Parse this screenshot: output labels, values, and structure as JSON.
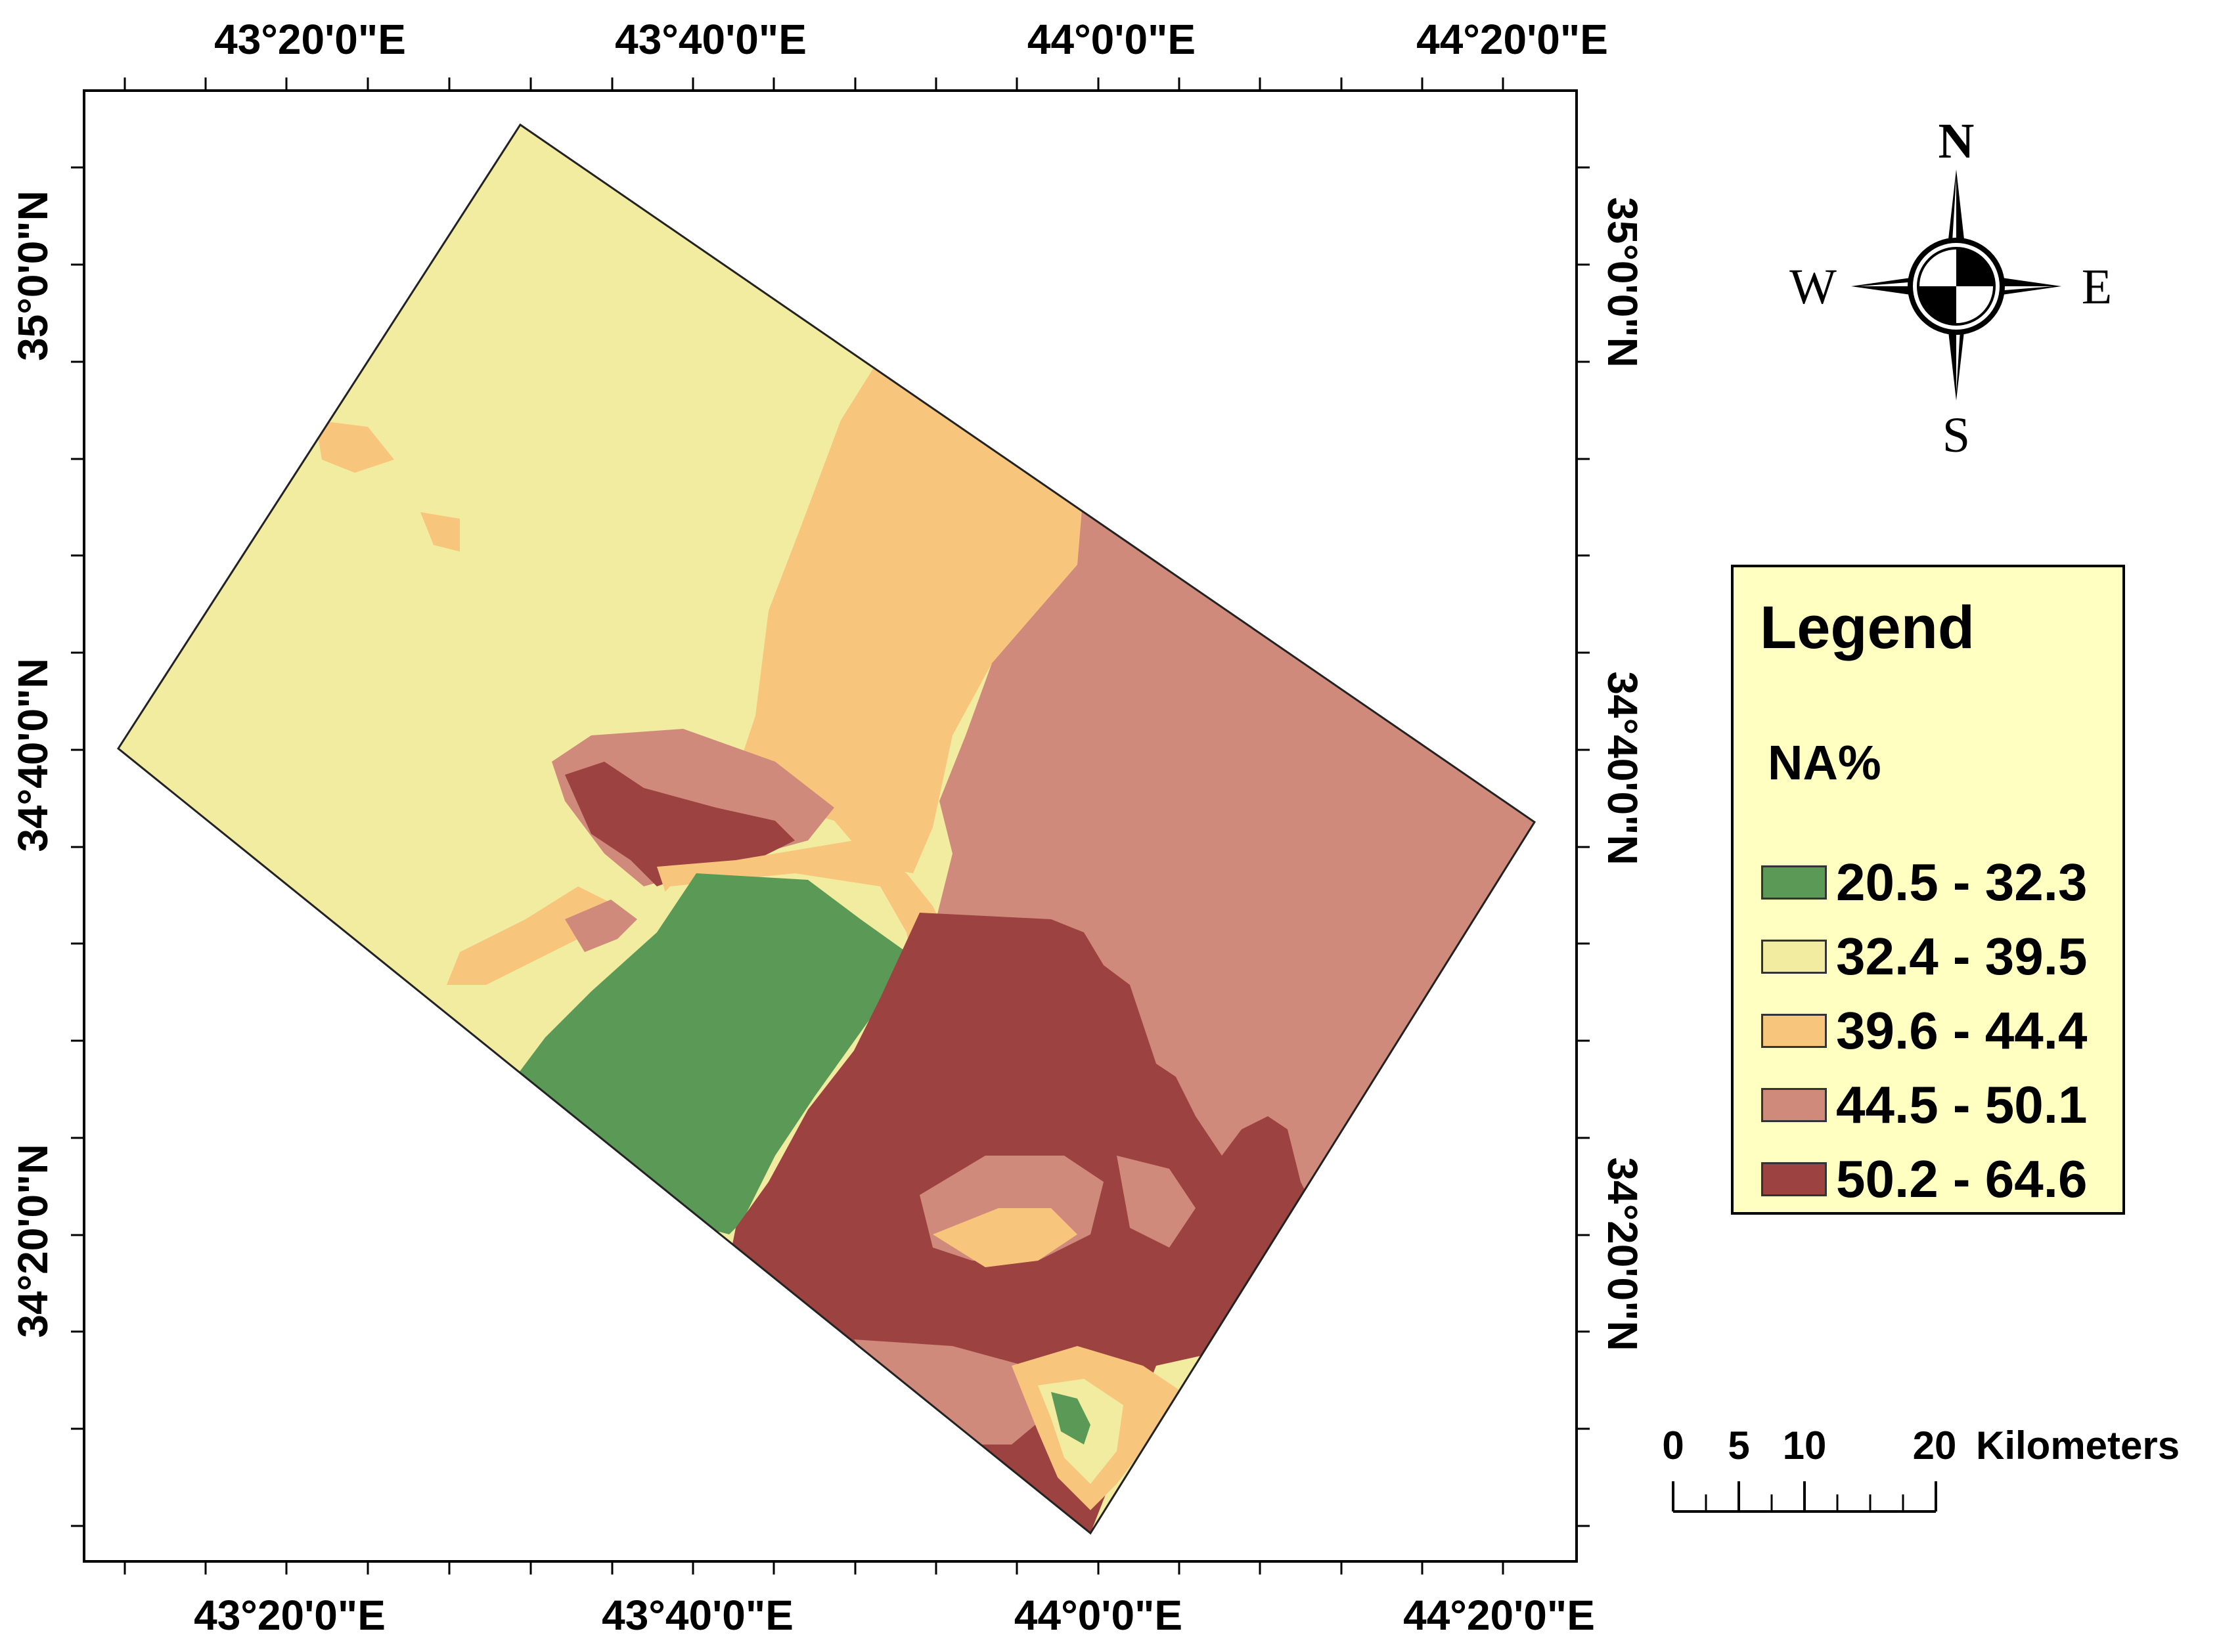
{
  "axes": {
    "top_labels": [
      "43°20'0\"E",
      "43°40'0\"E",
      "44°0'0\"E",
      "44°20'0\"E"
    ],
    "bottom_labels": [
      "43°20'0\"E",
      "43°40'0\"E",
      "44°0'0\"E",
      "44°20'0\"E"
    ],
    "left_labels": [
      "35°0'0\"N",
      "34°40'0\"N",
      "34°20'0\"N"
    ],
    "right_labels": [
      "35°0'0\"N",
      "34°40'0\"N",
      "34°20'0\"N"
    ]
  },
  "compass": {
    "n": "N",
    "s": "S",
    "e": "E",
    "w": "W"
  },
  "legend": {
    "title": "Legend",
    "field": "NA%",
    "classes": [
      {
        "label": "20.5 - 32.3",
        "color": "#5a9a56"
      },
      {
        "label": "32.4 - 39.5",
        "color": "#f2eca0"
      },
      {
        "label": "39.6 - 44.4",
        "color": "#f7c67c"
      },
      {
        "label": "44.5 - 50.1",
        "color": "#d08a7c"
      },
      {
        "label": "50.2 - 64.6",
        "color": "#9c4240"
      }
    ]
  },
  "scale_bar": {
    "ticks": [
      "0",
      "5",
      "10",
      "20"
    ],
    "units": "Kilometers"
  }
}
